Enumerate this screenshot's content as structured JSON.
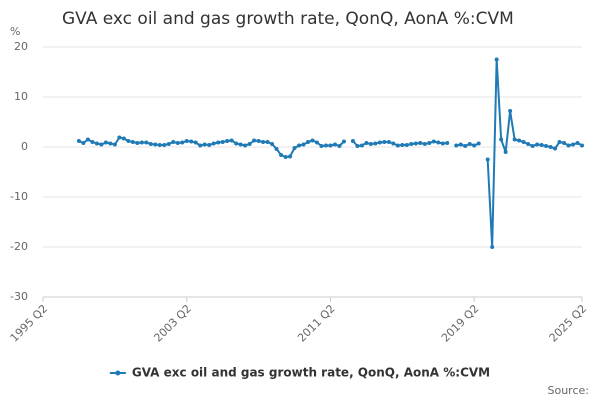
{
  "chart_data": {
    "type": "line",
    "title": "GVA exc oil and gas growth rate, QonQ, AonA %:CVM",
    "ylabel": "%",
    "source": "Source:",
    "categories": [
      "1995 Q2",
      null,
      null,
      null,
      null,
      null,
      null,
      null,
      null,
      null,
      null,
      null,
      null,
      null,
      null,
      null,
      null,
      null,
      null,
      null,
      null,
      null,
      null,
      null,
      null,
      null,
      null,
      null,
      null,
      null,
      null,
      null,
      "2003 Q2",
      null,
      null,
      null,
      null,
      null,
      null,
      null,
      null,
      null,
      null,
      null,
      null,
      null,
      null,
      null,
      null,
      null,
      null,
      null,
      null,
      null,
      null,
      null,
      null,
      null,
      null,
      null,
      null,
      null,
      null,
      null,
      "2011 Q2",
      null,
      null,
      null,
      null,
      null,
      null,
      null,
      null,
      null,
      null,
      null,
      null,
      null,
      null,
      null,
      null,
      null,
      null,
      null,
      null,
      null,
      null,
      null,
      null,
      null,
      null,
      null,
      null,
      null,
      null,
      null,
      "2019 Q2",
      null,
      null,
      null,
      null,
      null,
      null,
      null,
      null,
      null,
      null,
      null,
      null,
      null,
      null,
      null,
      null,
      null,
      null,
      null,
      null,
      null,
      null,
      null,
      "2025 Q2"
    ],
    "series": [
      {
        "name": "GVA exc oil and gas growth rate, QonQ, AonA %:CVM",
        "color": "#1f7ab5",
        "values": [
          null,
          null,
          null,
          null,
          null,
          null,
          null,
          null,
          1.2,
          0.8,
          1.5,
          1.0,
          0.7,
          0.5,
          0.9,
          0.7,
          0.5,
          1.9,
          1.7,
          1.2,
          1.0,
          0.8,
          0.9,
          0.9,
          0.6,
          0.5,
          0.4,
          0.4,
          0.6,
          1.0,
          0.8,
          0.9,
          1.2,
          1.1,
          0.9,
          0.3,
          0.5,
          0.4,
          0.7,
          0.9,
          1.0,
          1.2,
          1.3,
          0.7,
          0.5,
          0.3,
          0.6,
          1.3,
          1.2,
          1.0,
          1.0,
          0.6,
          -0.4,
          -1.6,
          -2.0,
          -1.9,
          -0.2,
          0.3,
          0.5,
          1.0,
          1.3,
          0.9,
          0.2,
          0.3,
          0.3,
          0.5,
          0.2,
          1.1,
          null,
          1.2,
          0.2,
          0.3,
          0.8,
          0.6,
          0.7,
          0.9,
          1.0,
          1.0,
          0.7,
          0.3,
          0.4,
          0.4,
          0.6,
          0.7,
          0.8,
          0.6,
          0.8,
          1.1,
          0.9,
          0.7,
          0.8,
          null,
          0.3,
          0.5,
          0.2,
          0.6,
          0.3,
          0.7,
          null,
          -2.5,
          -20,
          17.5,
          1.5,
          -1,
          7.2,
          1.5,
          1.3,
          1.0,
          0.6,
          0.2,
          0.5,
          0.4,
          0.2,
          0.0,
          -0.3,
          1.0,
          0.8,
          0.3,
          0.5,
          0.8,
          0.3
        ]
      }
    ],
    "ylim": [
      -30,
      20
    ],
    "yticks": [
      -30,
      -20,
      -10,
      0,
      10,
      20
    ],
    "grid": true
  }
}
